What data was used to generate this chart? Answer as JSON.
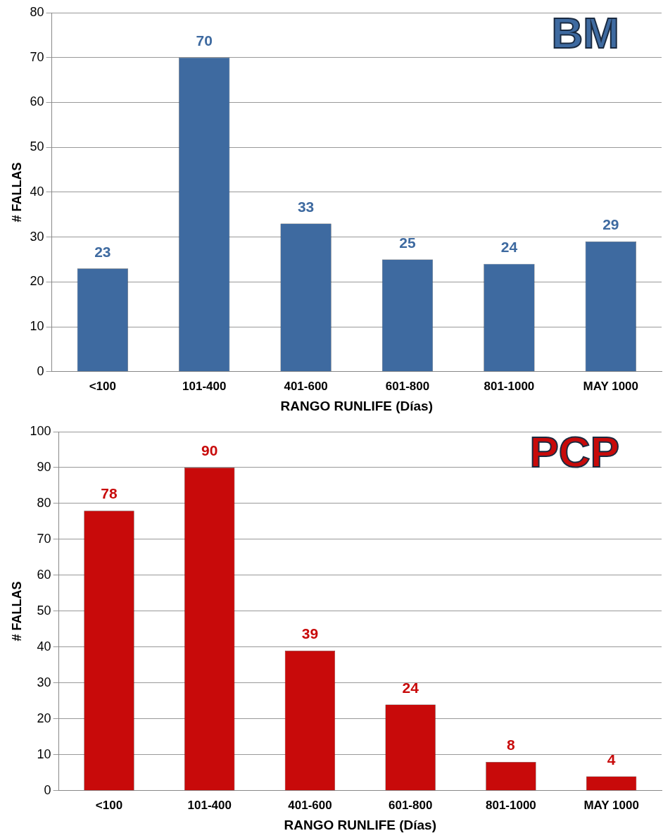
{
  "chart_data": [
    {
      "type": "bar",
      "title": "BM",
      "xlabel": "RANGO RUNLIFE (Días)",
      "ylabel": "# FALLAS",
      "categories": [
        "<100",
        "101-400",
        "401-600",
        "601-800",
        "801-1000",
        "MAY 1000"
      ],
      "values": [
        23,
        70,
        33,
        25,
        24,
        29
      ],
      "color": "#3e6aa0",
      "ylim": [
        0,
        80
      ],
      "yticks": [
        0,
        10,
        20,
        30,
        40,
        50,
        60,
        70,
        80
      ],
      "grid": "y",
      "data_labels": true
    },
    {
      "type": "bar",
      "title": "PCP",
      "xlabel": "RANGO RUNLIFE (Días)",
      "ylabel": "# FALLAS",
      "categories": [
        "<100",
        "101-400",
        "401-600",
        "601-800",
        "801-1000",
        "MAY 1000"
      ],
      "values": [
        78,
        90,
        39,
        24,
        8,
        4
      ],
      "color": "#c80a0a",
      "ylim": [
        0,
        100
      ],
      "yticks": [
        0,
        10,
        20,
        30,
        40,
        50,
        60,
        70,
        80,
        90,
        100
      ],
      "grid": "y",
      "data_labels": true
    }
  ]
}
